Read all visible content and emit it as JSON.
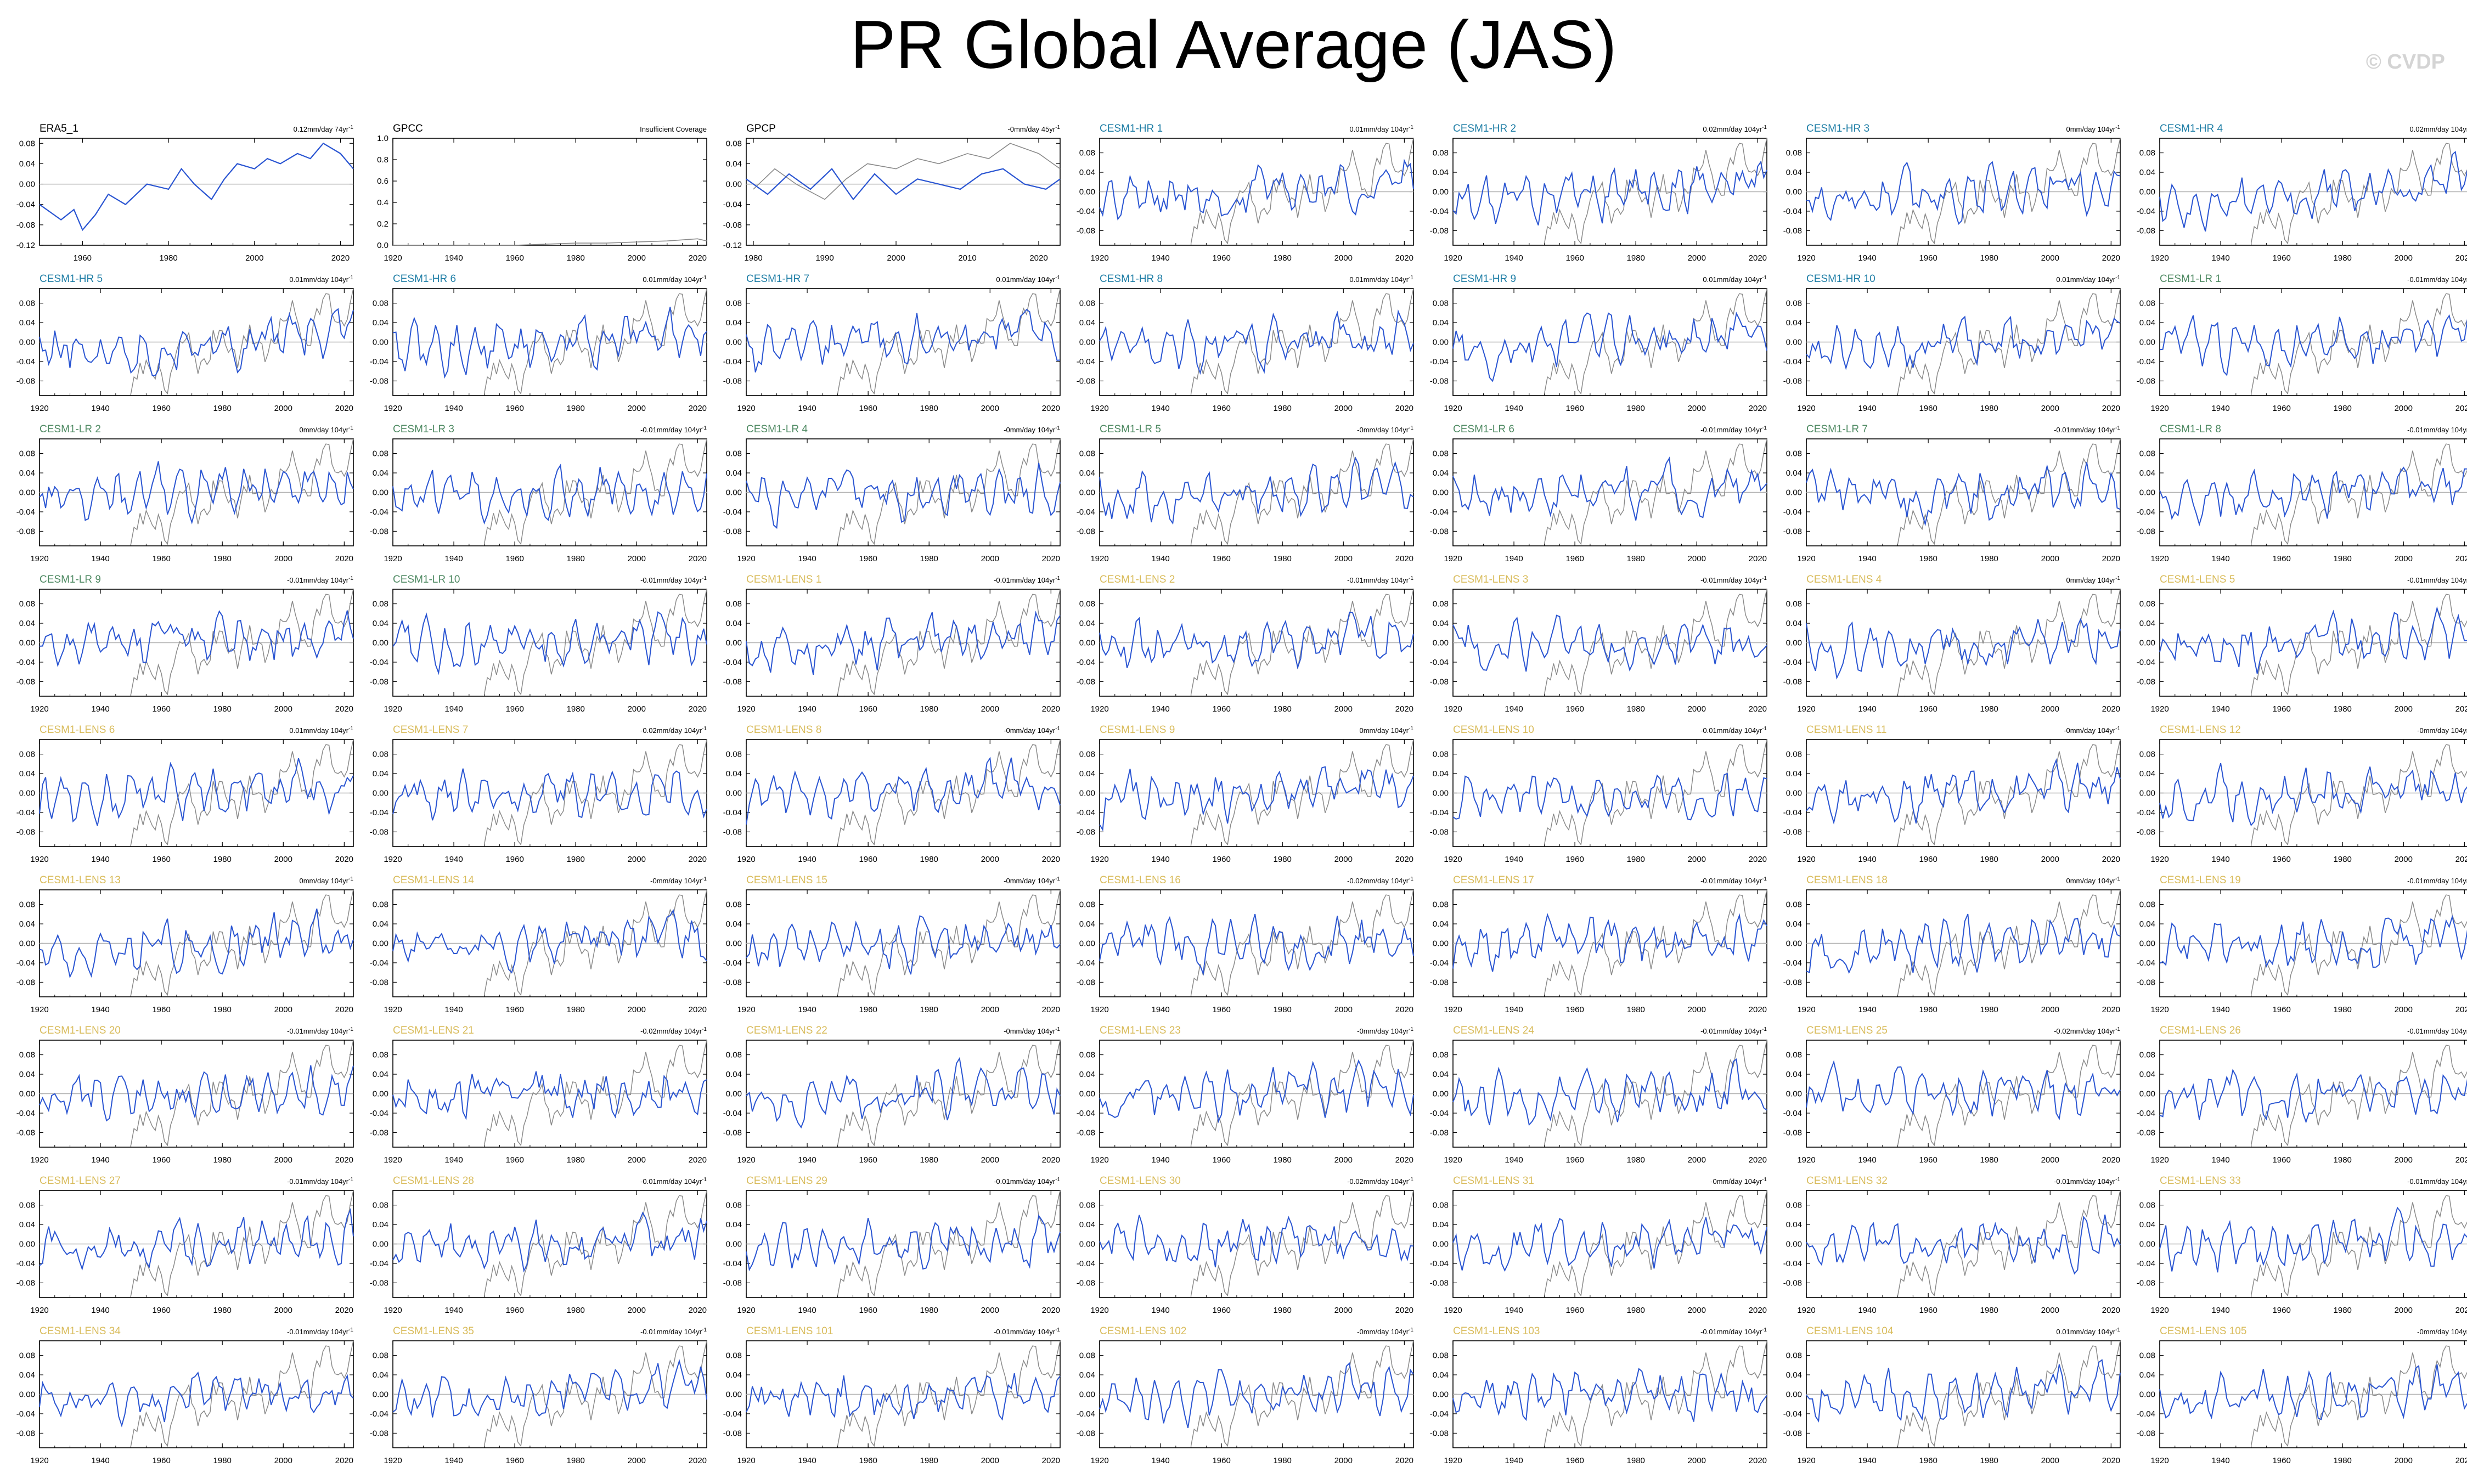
{
  "title": "PR Global Average (JAS)",
  "watermark": "© CVDP",
  "colors": {
    "obs_label": "#000000",
    "hr_label": "#1f7ea6",
    "lr_label": "#4f8a63",
    "lens_label": "#d9bc5c",
    "model_line": "#2a55d2",
    "reference_line": "#8a8a8a",
    "zero_line": "#b0b0b0"
  },
  "chart_data": {
    "type": "line",
    "model_years": [
      1920,
      2023
    ],
    "model_xticks": [
      1920,
      1940,
      1960,
      1980,
      2000,
      2020
    ],
    "model_yticks": [
      "0.08",
      "0.04",
      "0.00",
      "-0.04",
      "-0.08"
    ],
    "model_ylim": [
      -0.11,
      0.11
    ],
    "reference_series_name": "ERA5_1",
    "panels": [
      {
        "name": "ERA5_1",
        "group": "obs",
        "trend": "0.12mm/day 74yr",
        "trend_exp": "-1",
        "xlim": [
          1950,
          2023
        ],
        "xticks": [
          1960,
          1980,
          2000,
          2020
        ],
        "ylim": [
          -0.12,
          0.09
        ],
        "yticks": [
          "0.08",
          "0.04",
          "0.00",
          "-0.04",
          "-0.08",
          "-0.12"
        ],
        "series": "obs"
      },
      {
        "name": "GPCC",
        "group": "obs",
        "trend": "Insufficient Coverage",
        "trend_exp": "",
        "xlim": [
          1920,
          2023
        ],
        "xticks": [
          1920,
          1940,
          1960,
          1980,
          2000,
          2020
        ],
        "ylim": [
          0.0,
          1.0
        ],
        "yticks": [
          "1.0",
          "0.8",
          "0.6",
          "0.4",
          "0.2",
          "0.0"
        ],
        "series": "gpcc"
      },
      {
        "name": "GPCP",
        "group": "obs",
        "trend": "-0mm/day 45yr",
        "trend_exp": "-1",
        "xlim": [
          1979,
          2023
        ],
        "xticks": [
          1980,
          1990,
          2000,
          2010,
          2020
        ],
        "ylim": [
          -0.12,
          0.09
        ],
        "yticks": [
          "0.08",
          "0.04",
          "0.00",
          "-0.04",
          "-0.08",
          "-0.12"
        ],
        "series": "gpcp"
      },
      {
        "name": "CESM1-HR 1",
        "group": "hr",
        "trend": "0.01mm/day 104yr",
        "trend_exp": "-1"
      },
      {
        "name": "CESM1-HR 2",
        "group": "hr",
        "trend": "0.02mm/day 104yr",
        "trend_exp": "-1"
      },
      {
        "name": "CESM1-HR 3",
        "group": "hr",
        "trend": "0mm/day 104yr",
        "trend_exp": "-1"
      },
      {
        "name": "CESM1-HR 4",
        "group": "hr",
        "trend": "0.02mm/day 104yr",
        "trend_exp": "-1"
      },
      {
        "name": "CESM1-HR 5",
        "group": "hr",
        "trend": "0.01mm/day 104yr",
        "trend_exp": "-1"
      },
      {
        "name": "CESM1-HR 6",
        "group": "hr",
        "trend": "0.01mm/day 104yr",
        "trend_exp": "-1"
      },
      {
        "name": "CESM1-HR 7",
        "group": "hr",
        "trend": "0.01mm/day 104yr",
        "trend_exp": "-1"
      },
      {
        "name": "CESM1-HR 8",
        "group": "hr",
        "trend": "0.01mm/day 104yr",
        "trend_exp": "-1"
      },
      {
        "name": "CESM1-HR 9",
        "group": "hr",
        "trend": "0.01mm/day 104yr",
        "trend_exp": "-1"
      },
      {
        "name": "CESM1-HR 10",
        "group": "hr",
        "trend": "0.01mm/day 104yr",
        "trend_exp": "-1"
      },
      {
        "name": "CESM1-LR 1",
        "group": "lr",
        "trend": "-0.01mm/day 104yr",
        "trend_exp": "-1"
      },
      {
        "name": "CESM1-LR 2",
        "group": "lr",
        "trend": "0mm/day 104yr",
        "trend_exp": "-1"
      },
      {
        "name": "CESM1-LR 3",
        "group": "lr",
        "trend": "-0.01mm/day 104yr",
        "trend_exp": "-1"
      },
      {
        "name": "CESM1-LR 4",
        "group": "lr",
        "trend": "-0mm/day 104yr",
        "trend_exp": "-1"
      },
      {
        "name": "CESM1-LR 5",
        "group": "lr",
        "trend": "-0mm/day 104yr",
        "trend_exp": "-1"
      },
      {
        "name": "CESM1-LR 6",
        "group": "lr",
        "trend": "-0.01mm/day 104yr",
        "trend_exp": "-1"
      },
      {
        "name": "CESM1-LR 7",
        "group": "lr",
        "trend": "-0.01mm/day 104yr",
        "trend_exp": "-1"
      },
      {
        "name": "CESM1-LR 8",
        "group": "lr",
        "trend": "-0.01mm/day 104yr",
        "trend_exp": "-1"
      },
      {
        "name": "CESM1-LR 9",
        "group": "lr",
        "trend": "-0.01mm/day 104yr",
        "trend_exp": "-1"
      },
      {
        "name": "CESM1-LR 10",
        "group": "lr",
        "trend": "-0.01mm/day 104yr",
        "trend_exp": "-1"
      },
      {
        "name": "CESM1-LENS 1",
        "group": "lens",
        "trend": "-0.01mm/day 104yr",
        "trend_exp": "-1"
      },
      {
        "name": "CESM1-LENS 2",
        "group": "lens",
        "trend": "-0.01mm/day 104yr",
        "trend_exp": "-1"
      },
      {
        "name": "CESM1-LENS 3",
        "group": "lens",
        "trend": "-0.01mm/day 104yr",
        "trend_exp": "-1"
      },
      {
        "name": "CESM1-LENS 4",
        "group": "lens",
        "trend": "0mm/day 104yr",
        "trend_exp": "-1"
      },
      {
        "name": "CESM1-LENS 5",
        "group": "lens",
        "trend": "-0.01mm/day 104yr",
        "trend_exp": "-1"
      },
      {
        "name": "CESM1-LENS 6",
        "group": "lens",
        "trend": "0.01mm/day 104yr",
        "trend_exp": "-1"
      },
      {
        "name": "CESM1-LENS 7",
        "group": "lens",
        "trend": "-0.02mm/day 104yr",
        "trend_exp": "-1"
      },
      {
        "name": "CESM1-LENS 8",
        "group": "lens",
        "trend": "-0mm/day 104yr",
        "trend_exp": "-1"
      },
      {
        "name": "CESM1-LENS 9",
        "group": "lens",
        "trend": "0mm/day 104yr",
        "trend_exp": "-1"
      },
      {
        "name": "CESM1-LENS 10",
        "group": "lens",
        "trend": "-0.01mm/day 104yr",
        "trend_exp": "-1"
      },
      {
        "name": "CESM1-LENS 11",
        "group": "lens",
        "trend": "-0mm/day 104yr",
        "trend_exp": "-1"
      },
      {
        "name": "CESM1-LENS 12",
        "group": "lens",
        "trend": "-0mm/day 104yr",
        "trend_exp": "-1"
      },
      {
        "name": "CESM1-LENS 13",
        "group": "lens",
        "trend": "0mm/day 104yr",
        "trend_exp": "-1"
      },
      {
        "name": "CESM1-LENS 14",
        "group": "lens",
        "trend": "-0mm/day 104yr",
        "trend_exp": "-1"
      },
      {
        "name": "CESM1-LENS 15",
        "group": "lens",
        "trend": "-0mm/day 104yr",
        "trend_exp": "-1"
      },
      {
        "name": "CESM1-LENS 16",
        "group": "lens",
        "trend": "-0.02mm/day 104yr",
        "trend_exp": "-1"
      },
      {
        "name": "CESM1-LENS 17",
        "group": "lens",
        "trend": "-0.01mm/day 104yr",
        "trend_exp": "-1"
      },
      {
        "name": "CESM1-LENS 18",
        "group": "lens",
        "trend": "0mm/day 104yr",
        "trend_exp": "-1"
      },
      {
        "name": "CESM1-LENS 19",
        "group": "lens",
        "trend": "-0.01mm/day 104yr",
        "trend_exp": "-1"
      },
      {
        "name": "CESM1-LENS 20",
        "group": "lens",
        "trend": "-0.01mm/day 104yr",
        "trend_exp": "-1"
      },
      {
        "name": "CESM1-LENS 21",
        "group": "lens",
        "trend": "-0.02mm/day 104yr",
        "trend_exp": "-1"
      },
      {
        "name": "CESM1-LENS 22",
        "group": "lens",
        "trend": "-0mm/day 104yr",
        "trend_exp": "-1"
      },
      {
        "name": "CESM1-LENS 23",
        "group": "lens",
        "trend": "-0mm/day 104yr",
        "trend_exp": "-1"
      },
      {
        "name": "CESM1-LENS 24",
        "group": "lens",
        "trend": "-0.01mm/day 104yr",
        "trend_exp": "-1"
      },
      {
        "name": "CESM1-LENS 25",
        "group": "lens",
        "trend": "-0.02mm/day 104yr",
        "trend_exp": "-1"
      },
      {
        "name": "CESM1-LENS 26",
        "group": "lens",
        "trend": "-0.01mm/day 104yr",
        "trend_exp": "-1"
      },
      {
        "name": "CESM1-LENS 27",
        "group": "lens",
        "trend": "-0.01mm/day 104yr",
        "trend_exp": "-1"
      },
      {
        "name": "CESM1-LENS 28",
        "group": "lens",
        "trend": "-0.01mm/day 104yr",
        "trend_exp": "-1"
      },
      {
        "name": "CESM1-LENS 29",
        "group": "lens",
        "trend": "-0.01mm/day 104yr",
        "trend_exp": "-1"
      },
      {
        "name": "CESM1-LENS 30",
        "group": "lens",
        "trend": "-0.02mm/day 104yr",
        "trend_exp": "-1"
      },
      {
        "name": "CESM1-LENS 31",
        "group": "lens",
        "trend": "-0mm/day 104yr",
        "trend_exp": "-1"
      },
      {
        "name": "CESM1-LENS 32",
        "group": "lens",
        "trend": "-0.01mm/day 104yr",
        "trend_exp": "-1"
      },
      {
        "name": "CESM1-LENS 33",
        "group": "lens",
        "trend": "-0.01mm/day 104yr",
        "trend_exp": "-1"
      },
      {
        "name": "CESM1-LENS 34",
        "group": "lens",
        "trend": "-0.01mm/day 104yr",
        "trend_exp": "-1"
      },
      {
        "name": "CESM1-LENS 35",
        "group": "lens",
        "trend": "-0.01mm/day 104yr",
        "trend_exp": "-1"
      },
      {
        "name": "CESM1-LENS 101",
        "group": "lens",
        "trend": "-0.01mm/day 104yr",
        "trend_exp": "-1"
      },
      {
        "name": "CESM1-LENS 102",
        "group": "lens",
        "trend": "-0mm/day 104yr",
        "trend_exp": "-1"
      },
      {
        "name": "CESM1-LENS 103",
        "group": "lens",
        "trend": "-0.01mm/day 104yr",
        "trend_exp": "-1"
      },
      {
        "name": "CESM1-LENS 104",
        "group": "lens",
        "trend": "0.01mm/day 104yr",
        "trend_exp": "-1"
      },
      {
        "name": "CESM1-LENS 105",
        "group": "lens",
        "trend": "-0mm/day 104yr",
        "trend_exp": "-1"
      }
    ],
    "reference": {
      "x": [
        1950,
        1955,
        1958,
        1960,
        1963,
        1966,
        1970,
        1975,
        1980,
        1983,
        1986,
        1990,
        1993,
        1996,
        2000,
        2003,
        2006,
        2010,
        2013,
        2016,
        2020,
        2023
      ],
      "y": [
        -0.04,
        -0.07,
        -0.05,
        -0.09,
        -0.06,
        -0.02,
        -0.04,
        0.0,
        -0.01,
        0.03,
        0.0,
        -0.03,
        0.01,
        0.04,
        0.03,
        0.05,
        0.04,
        0.06,
        0.05,
        0.08,
        0.06,
        0.03
      ]
    },
    "gpcp": {
      "x": [
        1979,
        1982,
        1985,
        1988,
        1991,
        1994,
        1997,
        2000,
        2003,
        2006,
        2009,
        2012,
        2015,
        2018,
        2021,
        2023
      ],
      "y": [
        0.01,
        -0.02,
        0.02,
        -0.01,
        0.03,
        -0.03,
        0.02,
        -0.02,
        0.01,
        0.0,
        -0.01,
        0.02,
        0.03,
        0.0,
        -0.01,
        0.01
      ]
    },
    "gpcc": {
      "x": [
        1920,
        1960,
        1970,
        1980,
        1990,
        2000,
        2010,
        2020,
        2023
      ],
      "y": [
        0.0,
        0.0,
        0.01,
        0.02,
        0.02,
        0.03,
        0.04,
        0.06,
        0.04
      ]
    }
  }
}
